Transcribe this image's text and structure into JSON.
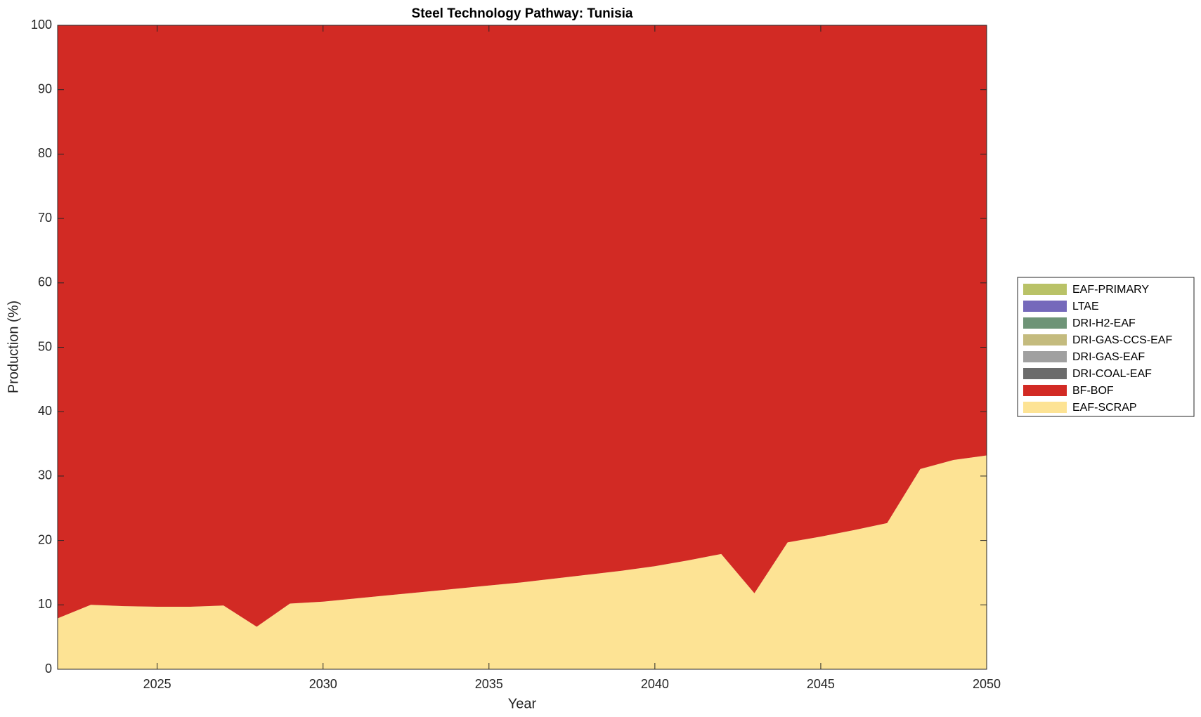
{
  "chart_data": {
    "type": "stacked-area",
    "title": "Steel Technology Pathway: Tunisia",
    "x_label": "Year",
    "y_label": "Production (%)",
    "x": [
      2022,
      2023,
      2024,
      2025,
      2026,
      2027,
      2028,
      2029,
      2030,
      2031,
      2032,
      2033,
      2034,
      2035,
      2036,
      2037,
      2038,
      2039,
      2040,
      2041,
      2042,
      2043,
      2044,
      2045,
      2046,
      2047,
      2048,
      2049,
      2050
    ],
    "xlim": [
      2022,
      2050
    ],
    "xticks": [
      2025,
      2030,
      2035,
      2040,
      2045,
      2050
    ],
    "ylim": [
      0,
      100
    ],
    "yticks": [
      0,
      10,
      20,
      30,
      40,
      50,
      60,
      70,
      80,
      90,
      100
    ],
    "legend": "outside-right",
    "series": [
      {
        "name": "EAF-SCRAP",
        "color": "#fde394",
        "values": [
          7.9,
          10.0,
          9.8,
          9.7,
          9.7,
          9.9,
          6.6,
          10.2,
          10.5,
          11.0,
          11.5,
          12.0,
          12.5,
          13.0,
          13.5,
          14.1,
          14.7,
          15.3,
          16.0,
          16.9,
          17.9,
          11.8,
          19.7,
          20.6,
          21.6,
          22.7,
          31.1,
          32.5,
          33.2
        ]
      },
      {
        "name": "BF-BOF",
        "color": "#d22a24",
        "values": [
          92.1,
          90.0,
          90.2,
          90.3,
          90.3,
          90.1,
          93.4,
          89.8,
          89.5,
          89.0,
          88.5,
          88.0,
          87.5,
          87.0,
          86.5,
          85.9,
          85.3,
          84.7,
          84.0,
          83.1,
          82.1,
          88.2,
          80.3,
          79.4,
          78.4,
          77.3,
          68.9,
          67.5,
          66.8
        ]
      },
      {
        "name": "DRI-COAL-EAF",
        "color": "#6b6b6b",
        "values": [
          0,
          0,
          0,
          0,
          0,
          0,
          0,
          0,
          0,
          0,
          0,
          0,
          0,
          0,
          0,
          0,
          0,
          0,
          0,
          0,
          0,
          0,
          0,
          0,
          0,
          0,
          0,
          0,
          0
        ]
      },
      {
        "name": "DRI-GAS-EAF",
        "color": "#a0a0a0",
        "values": [
          0,
          0,
          0,
          0,
          0,
          0,
          0,
          0,
          0,
          0,
          0,
          0,
          0,
          0,
          0,
          0,
          0,
          0,
          0,
          0,
          0,
          0,
          0,
          0,
          0,
          0,
          0,
          0,
          0
        ]
      },
      {
        "name": "DRI-GAS-CCS-EAF",
        "color": "#c4bb7e",
        "values": [
          0,
          0,
          0,
          0,
          0,
          0,
          0,
          0,
          0,
          0,
          0,
          0,
          0,
          0,
          0,
          0,
          0,
          0,
          0,
          0,
          0,
          0,
          0,
          0,
          0,
          0,
          0,
          0,
          0
        ]
      },
      {
        "name": "DRI-H2-EAF",
        "color": "#6e9477",
        "values": [
          0,
          0,
          0,
          0,
          0,
          0,
          0,
          0,
          0,
          0,
          0,
          0,
          0,
          0,
          0,
          0,
          0,
          0,
          0,
          0,
          0,
          0,
          0,
          0,
          0,
          0,
          0,
          0,
          0
        ]
      },
      {
        "name": "LTAE",
        "color": "#7569bb",
        "values": [
          0,
          0,
          0,
          0,
          0,
          0,
          0,
          0,
          0,
          0,
          0,
          0,
          0,
          0,
          0,
          0,
          0,
          0,
          0,
          0,
          0,
          0,
          0,
          0,
          0,
          0,
          0,
          0,
          0
        ]
      },
      {
        "name": "EAF-PRIMARY",
        "color": "#b9c267",
        "values": [
          0,
          0,
          0,
          0,
          0,
          0,
          0,
          0,
          0,
          0,
          0,
          0,
          0,
          0,
          0,
          0,
          0,
          0,
          0,
          0,
          0,
          0,
          0,
          0,
          0,
          0,
          0,
          0,
          0
        ]
      }
    ]
  }
}
